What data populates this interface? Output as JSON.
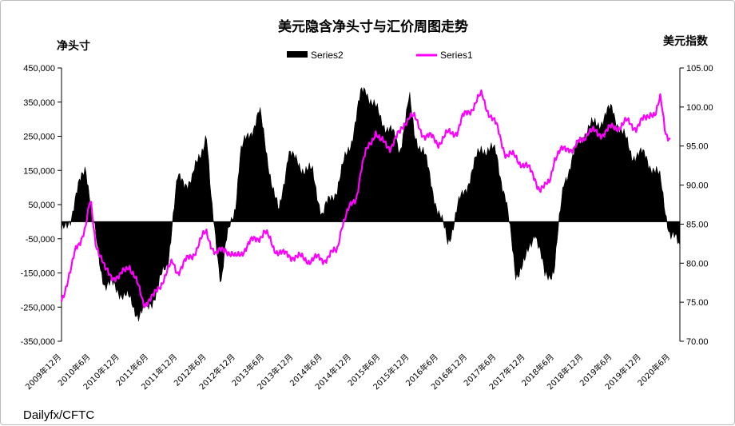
{
  "chart_data": {
    "type": "bar-line-dual-axis",
    "title": "美元隐含净头寸与汇价周图走势",
    "y_left_label": "净头寸",
    "y_right_label": "美元指数",
    "source": "Dailyfx/CFTC",
    "legend_position": "top-center",
    "grid": false,
    "y_left": {
      "min": -350000,
      "max": 450000,
      "ticks": [
        "450,000",
        "350,000",
        "250,000",
        "150,000",
        "50,000",
        "-50,000",
        "-150,000",
        "-250,000",
        "-350,000"
      ]
    },
    "y_right": {
      "min": 70,
      "max": 105,
      "ticks": [
        "105.00",
        "100.00",
        "95.00",
        "90.00",
        "85.00",
        "80.00",
        "75.00",
        "70.00"
      ]
    },
    "x_ticks": [
      "2009年12月",
      "2010年6月",
      "2010年12月",
      "2011年6月",
      "2011年12月",
      "2012年6月",
      "2012年12月",
      "2013年6月",
      "2013年12月",
      "2014年6月",
      "2014年12月",
      "2015年6月",
      "2015年12月",
      "2016年6月",
      "2016年12月",
      "2017年6月",
      "2017年12月",
      "2018年6月",
      "2018年12月",
      "2019年6月",
      "2019年12月",
      "2020年6月"
    ],
    "x_months": [
      0,
      6,
      12,
      18,
      24,
      30,
      36,
      42,
      48,
      54,
      60,
      66,
      72,
      78,
      84,
      90,
      96,
      102,
      108,
      114,
      120,
      126
    ],
    "x_range_months": [
      0,
      128
    ],
    "x_unit": "months since 2009-12",
    "series": [
      {
        "name": "Series2",
        "kind": "area",
        "axis": "left",
        "color": "#000000",
        "x": [
          0,
          2,
          4,
          5,
          6,
          7,
          8,
          9,
          12,
          14,
          16,
          18,
          20,
          22,
          23,
          24,
          27,
          30,
          31,
          33,
          34,
          36,
          37,
          38,
          41,
          44,
          45,
          47,
          48,
          52,
          54,
          57,
          60,
          62,
          63,
          66,
          68,
          70,
          72,
          73,
          75,
          78,
          80,
          82,
          87,
          90,
          92,
          94,
          96,
          98,
          100,
          102,
          104,
          108,
          112,
          114,
          116,
          118,
          121,
          124,
          126,
          128
        ],
        "values": [
          -40000,
          20000,
          120000,
          170000,
          60000,
          -40000,
          -130000,
          -180000,
          -200000,
          -230000,
          -270000,
          -250000,
          -190000,
          -120000,
          10000,
          120000,
          120000,
          260000,
          50000,
          -170000,
          -70000,
          50000,
          200000,
          230000,
          320000,
          80000,
          20000,
          210000,
          180000,
          140000,
          20000,
          100000,
          240000,
          370000,
          390000,
          300000,
          270000,
          210000,
          360000,
          260000,
          200000,
          30000,
          -60000,
          40000,
          220000,
          200000,
          60000,
          -150000,
          -120000,
          -20000,
          -160000,
          -140000,
          120000,
          260000,
          300000,
          330000,
          260000,
          200000,
          190000,
          120000,
          -40000,
          -70000
        ]
      },
      {
        "name": "Series1",
        "kind": "line",
        "axis": "right",
        "color": "#ff00ff",
        "x": [
          0,
          2,
          3,
          5,
          6,
          7,
          9,
          12,
          14,
          17,
          19,
          21,
          23,
          24,
          27,
          30,
          32,
          34,
          36,
          38,
          41,
          42,
          44,
          46,
          48,
          50,
          54,
          57,
          58,
          61,
          62,
          63,
          65,
          66,
          68,
          70,
          71,
          72,
          73,
          75,
          78,
          80,
          82,
          83,
          85,
          87,
          88,
          90,
          92,
          94,
          96,
          98,
          99,
          100,
          101,
          102,
          104,
          105,
          106,
          108,
          109,
          111,
          113,
          115,
          117,
          119,
          121,
          122,
          123,
          124,
          125,
          126
        ],
        "values": [
          75.5,
          79.0,
          82.0,
          84.5,
          88.0,
          83.0,
          79.0,
          78.0,
          80.0,
          75.0,
          75.5,
          78.0,
          80.0,
          79.0,
          81.0,
          84.0,
          81.0,
          82.0,
          80.5,
          82.0,
          83.5,
          84.0,
          82.0,
          81.0,
          81.0,
          80.5,
          80.5,
          81.5,
          85.0,
          88.5,
          92.0,
          94.0,
          97.0,
          95.5,
          95.0,
          96.5,
          98.0,
          99.0,
          98.5,
          96.5,
          95.5,
          96.5,
          97.0,
          98.5,
          100.0,
          101.5,
          100.0,
          97.5,
          94.0,
          93.5,
          92.5,
          91.0,
          89.5,
          89.5,
          90.5,
          93.5,
          94.5,
          95.0,
          94.5,
          96.0,
          97.0,
          96.5,
          97.0,
          97.5,
          98.0,
          97.5,
          98.5,
          99.5,
          99.0,
          101.0,
          97.0,
          96.0
        ]
      }
    ]
  }
}
